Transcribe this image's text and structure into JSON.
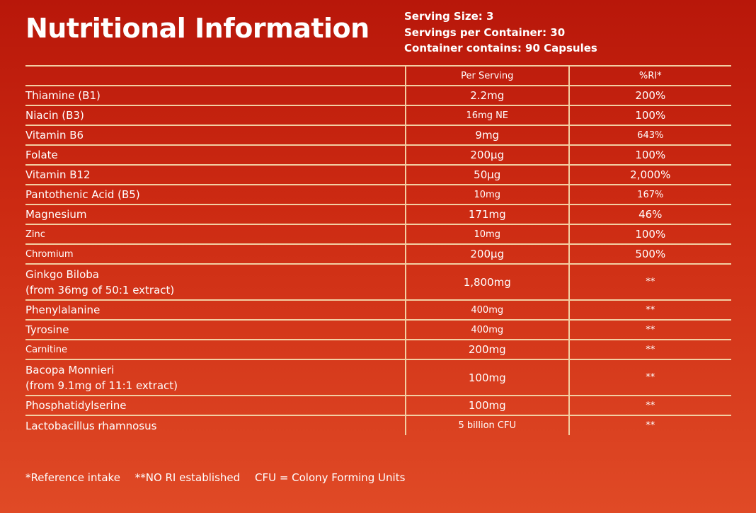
{
  "title": "Nutritional Information",
  "serving": {
    "size": "Serving Size: 3",
    "per_container": "Servings per Container: 30",
    "contains": "Container contains: 90 Capsules"
  },
  "table": {
    "headers": [
      "",
      "Per Serving",
      "%RI*"
    ],
    "rows": [
      {
        "name": "Thiamine (B1)",
        "per_serving": "2.2mg",
        "ri": "200%"
      },
      {
        "name": "Niacin (B3)",
        "per_serving": "16mg NE",
        "ri": "100%"
      },
      {
        "name": "Vitamin B6",
        "per_serving": "9mg",
        "ri": "643%"
      },
      {
        "name": "Folate",
        "per_serving": "200µg",
        "ri": "100%"
      },
      {
        "name": "Vitamin B12",
        "per_serving": "50µg",
        "ri": "2,000%"
      },
      {
        "name": "Pantothenic Acid (B5)",
        "per_serving": "10mg",
        "ri": "167%"
      },
      {
        "name": "Magnesium",
        "per_serving": "171mg",
        "ri": "46%"
      },
      {
        "name": "Zinc",
        "per_serving": "10mg",
        "ri": "100%"
      },
      {
        "name": "Chromium",
        "per_serving": "200µg",
        "ri": "500%"
      },
      {
        "name": "Ginkgo Biloba",
        "name2": "(from 36mg of 50:1 extract)",
        "per_serving": "1,800mg",
        "ri": "**"
      },
      {
        "name": "Phenylalanine",
        "per_serving": "400mg",
        "ri": "**"
      },
      {
        "name": "Tyrosine",
        "per_serving": "400mg",
        "ri": "**"
      },
      {
        "name": "Carnitine",
        "per_serving": "200mg",
        "ri": "**"
      },
      {
        "name": "Bacopa Monnieri",
        "name2": "(from 9.1mg of 11:1 extract)",
        "per_serving": "100mg",
        "ri": "**"
      },
      {
        "name": "Phosphatidylserine",
        "per_serving": "100mg",
        "ri": "**"
      },
      {
        "name": "Lactobacillus rhamnosus",
        "per_serving": "5 billion CFU",
        "ri": "**"
      }
    ]
  },
  "footer": {
    "ri_note": "*Reference intake",
    "no_ri_note": "**NO RI established",
    "cfu_note": "CFU = Colony Forming Units"
  }
}
